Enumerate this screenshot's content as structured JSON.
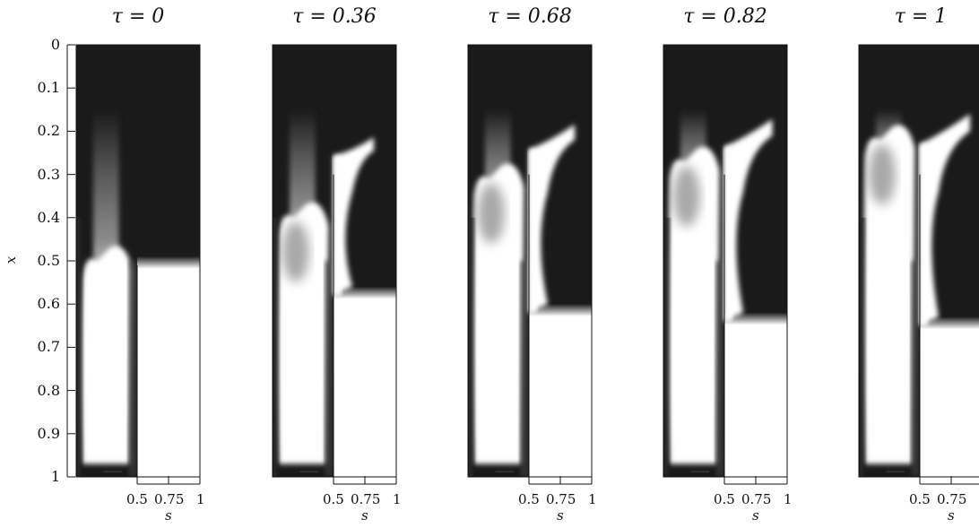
{
  "figure": {
    "y_axis": {
      "label": "x",
      "ticks": [
        "0",
        "0.1",
        "0.2",
        "0.3",
        "0.4",
        "0.5",
        "0.6",
        "0.7",
        "0.8",
        "0.9",
        "1"
      ]
    },
    "x_axis": {
      "label": "s",
      "ticks": [
        "0.5",
        "0.75",
        "1"
      ]
    },
    "panels": [
      {
        "title": "τ = 0",
        "tau": 0,
        "right_front_x": 0.51,
        "hook": 0.0
      },
      {
        "title": "τ = 0.36",
        "tau": 0.36,
        "right_front_x": 0.58,
        "hook": 0.55
      },
      {
        "title": "τ = 0.68",
        "tau": 0.68,
        "right_front_x": 0.62,
        "hook": 0.8
      },
      {
        "title": "τ = 0.82",
        "tau": 0.82,
        "right_front_x": 0.64,
        "hook": 0.9
      },
      {
        "title": "τ = 1",
        "tau": 1,
        "right_front_x": 0.65,
        "hook": 1.0
      }
    ],
    "colors": {
      "dark": "#1a1a1a",
      "light": "#ffffff",
      "mid": "#9a9a9a"
    }
  }
}
